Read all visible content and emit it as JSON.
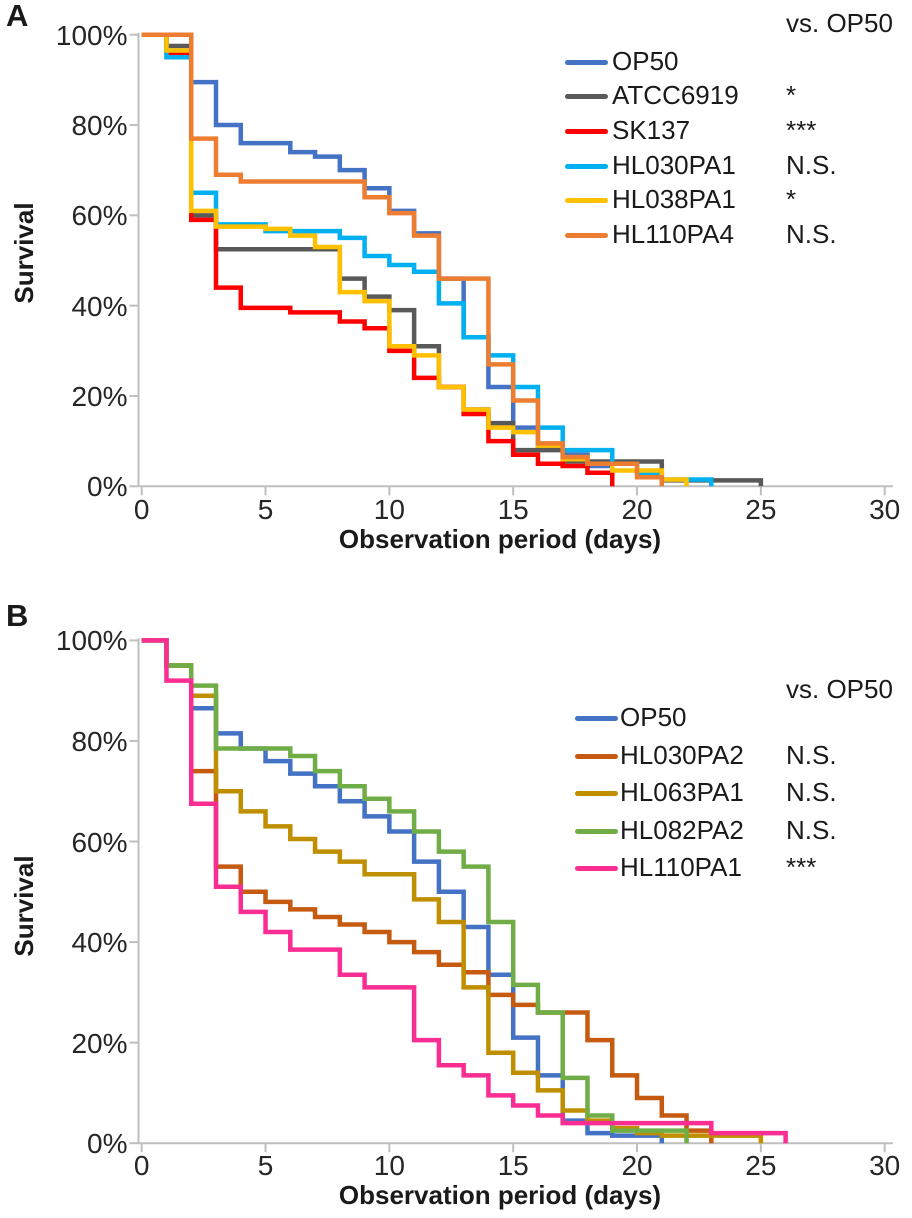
{
  "figure": {
    "description": "Kaplan-Meier survival curves of C. elegans on different bacterial strains, panels A and B"
  },
  "chart_data": [
    {
      "panel": "A",
      "type": "line",
      "step": true,
      "xlabel": "Observation period (days)",
      "ylabel": "Survival",
      "legend_header": "vs. OP50",
      "legend_position": "top-right",
      "xlim": [
        0,
        30
      ],
      "ylim": [
        0,
        100
      ],
      "x_ticks": [
        "0",
        "5",
        "10",
        "15",
        "20",
        "25",
        "30"
      ],
      "y_ticks": [
        "100%",
        "80%",
        "60%",
        "40%",
        "20%",
        "0%"
      ],
      "series": [
        {
          "name": "OP50",
          "color": "#4472C4",
          "significance": "",
          "points": [
            [
              2,
              89.5
            ],
            [
              3,
              80
            ],
            [
              4,
              76
            ],
            [
              6,
              74
            ],
            [
              7,
              73
            ],
            [
              8,
              70
            ],
            [
              9,
              66
            ],
            [
              10,
              61
            ],
            [
              11,
              56
            ],
            [
              12,
              46
            ],
            [
              13,
              33
            ],
            [
              14,
              22
            ],
            [
              15,
              13
            ],
            [
              16,
              9
            ],
            [
              17,
              7
            ],
            [
              18,
              4.5
            ],
            [
              19,
              0
            ]
          ]
        },
        {
          "name": "ATCC6919",
          "color": "#595959",
          "significance": "*",
          "points": [
            [
              1,
              97.5
            ],
            [
              2,
              60
            ],
            [
              3,
              52.5
            ],
            [
              8,
              46
            ],
            [
              9,
              42
            ],
            [
              10,
              39
            ],
            [
              11,
              31
            ],
            [
              12,
              22
            ],
            [
              13,
              17
            ],
            [
              14,
              14
            ],
            [
              15,
              8
            ],
            [
              17,
              5.5
            ],
            [
              21,
              1.3
            ],
            [
              25,
              0
            ]
          ]
        },
        {
          "name": "SK137",
          "color": "#FF0000",
          "significance": "***",
          "points": [
            [
              1,
              96
            ],
            [
              2,
              59
            ],
            [
              3,
              44
            ],
            [
              4,
              39.5
            ],
            [
              6,
              38.5
            ],
            [
              8,
              36.5
            ],
            [
              9,
              35
            ],
            [
              10,
              30
            ],
            [
              11,
              24
            ],
            [
              12,
              22
            ],
            [
              13,
              16
            ],
            [
              14,
              10
            ],
            [
              15,
              7
            ],
            [
              16,
              5
            ],
            [
              17,
              4.5
            ],
            [
              18,
              3
            ],
            [
              19,
              0
            ]
          ]
        },
        {
          "name": "HL030PA1",
          "color": "#00B0F0",
          "significance": "N.S.",
          "points": [
            [
              1,
              95
            ],
            [
              2,
              65
            ],
            [
              3,
              58
            ],
            [
              5,
              56.5
            ],
            [
              8,
              55
            ],
            [
              9,
              51
            ],
            [
              10,
              49
            ],
            [
              11,
              47.5
            ],
            [
              12,
              40.5
            ],
            [
              13,
              33
            ],
            [
              14,
              29
            ],
            [
              15,
              22
            ],
            [
              16,
              13
            ],
            [
              17,
              8
            ],
            [
              19,
              5
            ],
            [
              20,
              3
            ],
            [
              21,
              1.5
            ],
            [
              23,
              0
            ]
          ]
        },
        {
          "name": "HL038PA1",
          "color": "#FFC000",
          "significance": "*",
          "points": [
            [
              1,
              96.5
            ],
            [
              2,
              61
            ],
            [
              3,
              57.5
            ],
            [
              5,
              57
            ],
            [
              6,
              55.5
            ],
            [
              7,
              53
            ],
            [
              8,
              43
            ],
            [
              9,
              41
            ],
            [
              10,
              31
            ],
            [
              11,
              29
            ],
            [
              12,
              22
            ],
            [
              13,
              17
            ],
            [
              14,
              13
            ],
            [
              15,
              12
            ],
            [
              16,
              9
            ],
            [
              17,
              6
            ],
            [
              18,
              5
            ],
            [
              19,
              3.5
            ],
            [
              21,
              1.5
            ],
            [
              22,
              0
            ]
          ]
        },
        {
          "name": "HL110PA4",
          "color": "#ED7D31",
          "significance": "N.S.",
          "points": [
            [
              2,
              77
            ],
            [
              3,
              69
            ],
            [
              4,
              67.5
            ],
            [
              9,
              64
            ],
            [
              10,
              60.5
            ],
            [
              11,
              55.5
            ],
            [
              12,
              46
            ],
            [
              14,
              27
            ],
            [
              15,
              19
            ],
            [
              16,
              9.5
            ],
            [
              17,
              6.5
            ],
            [
              18,
              5
            ],
            [
              20,
              2
            ],
            [
              21,
              0
            ]
          ]
        }
      ]
    },
    {
      "panel": "B",
      "type": "line",
      "step": true,
      "xlabel": "Observation period (days)",
      "ylabel": "Survival",
      "legend_header": "vs. OP50",
      "legend_position": "top-right",
      "xlim": [
        0,
        30
      ],
      "ylim": [
        0,
        100
      ],
      "x_ticks": [
        "0",
        "5",
        "10",
        "15",
        "20",
        "25",
        "30"
      ],
      "y_ticks": [
        "100%",
        "80%",
        "60%",
        "40%",
        "20%",
        "0%"
      ],
      "series": [
        {
          "name": "OP50",
          "color": "#4472C4",
          "significance": "",
          "points": [
            [
              1,
              95
            ],
            [
              2,
              86.5
            ],
            [
              3,
              81.5
            ],
            [
              4,
              78.5
            ],
            [
              5,
              76
            ],
            [
              6,
              73.5
            ],
            [
              7,
              71
            ],
            [
              8,
              68
            ],
            [
              9,
              65
            ],
            [
              10,
              62
            ],
            [
              11,
              56
            ],
            [
              12,
              50
            ],
            [
              13,
              43
            ],
            [
              14,
              33.5
            ],
            [
              15,
              21
            ],
            [
              16,
              13.5
            ],
            [
              17,
              4.5
            ],
            [
              18,
              2
            ],
            [
              19,
              1.5
            ],
            [
              21,
              0
            ]
          ]
        },
        {
          "name": "HL030PA2",
          "color": "#C55A11",
          "significance": "N.S.",
          "points": [
            [
              1,
              95
            ],
            [
              2,
              74
            ],
            [
              3,
              55
            ],
            [
              4,
              50
            ],
            [
              5,
              48
            ],
            [
              6,
              46.5
            ],
            [
              7,
              45
            ],
            [
              8,
              43.5
            ],
            [
              9,
              42
            ],
            [
              10,
              40
            ],
            [
              11,
              38
            ],
            [
              12,
              35.5
            ],
            [
              13,
              34
            ],
            [
              14,
              29.5
            ],
            [
              15,
              27.5
            ],
            [
              16,
              26
            ],
            [
              18,
              20.5
            ],
            [
              19,
              13.5
            ],
            [
              20,
              9
            ],
            [
              21,
              5.5
            ],
            [
              22,
              2.5
            ],
            [
              23,
              0
            ]
          ]
        },
        {
          "name": "HL063PA1",
          "color": "#BF8F00",
          "significance": "N.S.",
          "points": [
            [
              1,
              95
            ],
            [
              2,
              89
            ],
            [
              3,
              70
            ],
            [
              4,
              66
            ],
            [
              5,
              63
            ],
            [
              6,
              60.5
            ],
            [
              7,
              58
            ],
            [
              8,
              56
            ],
            [
              9,
              53.5
            ],
            [
              11,
              48.5
            ],
            [
              12,
              44
            ],
            [
              13,
              31
            ],
            [
              14,
              18
            ],
            [
              15,
              14
            ],
            [
              16,
              10.5
            ],
            [
              17,
              6.5
            ],
            [
              18,
              4.5
            ],
            [
              19,
              3
            ],
            [
              20,
              2
            ],
            [
              21,
              1.5
            ],
            [
              25,
              0
            ]
          ]
        },
        {
          "name": "HL082PA2",
          "color": "#70AD47",
          "significance": "N.S.",
          "points": [
            [
              1,
              95
            ],
            [
              2,
              91
            ],
            [
              3,
              78.5
            ],
            [
              6,
              77
            ],
            [
              7,
              74
            ],
            [
              8,
              71
            ],
            [
              9,
              68.5
            ],
            [
              10,
              66
            ],
            [
              11,
              62
            ],
            [
              12,
              58
            ],
            [
              13,
              55
            ],
            [
              14,
              44
            ],
            [
              15,
              31.5
            ],
            [
              16,
              26
            ],
            [
              17,
              13
            ],
            [
              18,
              5.5
            ],
            [
              19,
              2.5
            ],
            [
              22,
              0
            ]
          ]
        },
        {
          "name": "HL110PA1",
          "color": "#FA2D93",
          "significance": "***",
          "points": [
            [
              1,
              92
            ],
            [
              2,
              67.5
            ],
            [
              3,
              51
            ],
            [
              4,
              46
            ],
            [
              5,
              42
            ],
            [
              6,
              38.5
            ],
            [
              8,
              33.5
            ],
            [
              9,
              31
            ],
            [
              11,
              20.5
            ],
            [
              12,
              15.5
            ],
            [
              13,
              13.5
            ],
            [
              14,
              9.5
            ],
            [
              15,
              7.5
            ],
            [
              16,
              5.5
            ],
            [
              17,
              4
            ],
            [
              23,
              2
            ],
            [
              26,
              0
            ]
          ]
        }
      ]
    }
  ]
}
